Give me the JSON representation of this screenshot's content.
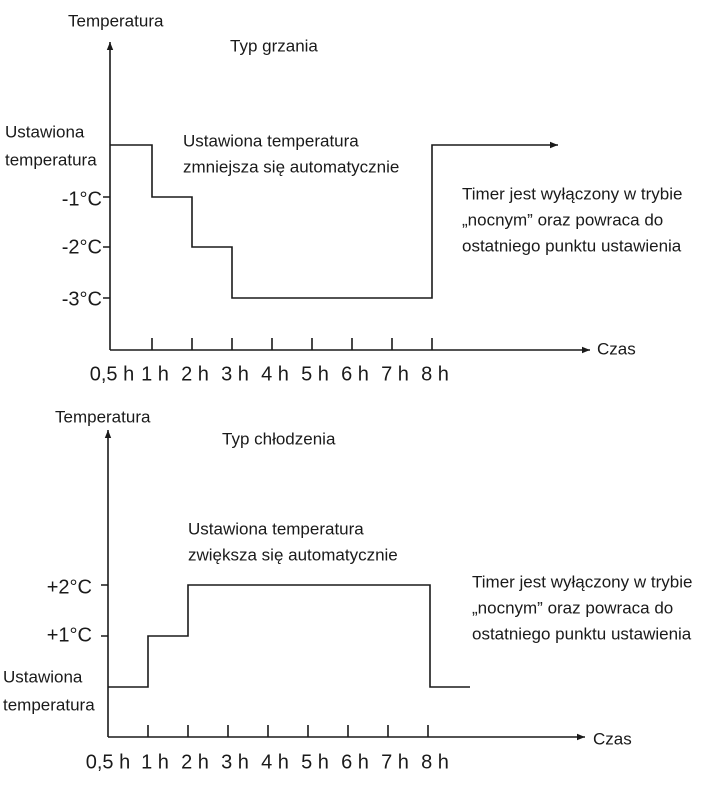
{
  "heating": {
    "y_axis_label": "Temperatura",
    "title": "Typ grzania",
    "y_labels": [
      [
        "Ustawiona",
        "temperatura"
      ],
      [
        "-1°C"
      ],
      [
        "-2°C"
      ],
      [
        "-3°C"
      ]
    ],
    "annotation": [
      "Ustawiona temperatura",
      "zmniejsza się automatycznie"
    ],
    "note": [
      "Timer jest wyłączony w trybie",
      "„nocnym” oraz powraca do",
      "ostatniego punktu ustawienia"
    ],
    "x_axis_label": "Czas",
    "x_labels": [
      "0,5 h",
      "1 h",
      "2 h",
      "3 h",
      "4 h",
      "5 h",
      "6 h",
      "7 h",
      "8 h"
    ]
  },
  "cooling": {
    "y_axis_label": "Temperatura",
    "title": "Typ chłodzenia",
    "y_labels": [
      [
        "+2°C"
      ],
      [
        "+1°C"
      ],
      [
        "Ustawiona",
        "temperatura"
      ]
    ],
    "annotation": [
      "Ustawiona temperatura",
      "zwiększa się automatycznie"
    ],
    "note": [
      "Timer jest wyłączony w trybie",
      "„nocnym” oraz powraca do",
      "ostatniego punktu ustawienia"
    ],
    "x_axis_label": "Czas",
    "x_labels": [
      "0,5 h",
      "1 h",
      "2 h",
      "3 h",
      "4 h",
      "5 h",
      "6 h",
      "7 h",
      "8 h"
    ]
  }
}
